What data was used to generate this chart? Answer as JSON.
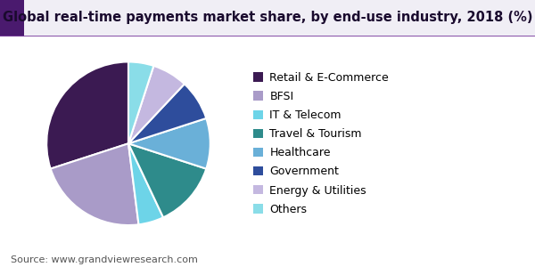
{
  "title": "Global real-time payments market share, by end-use industry, 2018 (%)",
  "source": "Source: www.grandviewresearch.com",
  "labels": [
    "Retail & E-Commerce",
    "BFSI",
    "IT & Telecom",
    "Travel & Tourism",
    "Healthcare",
    "Government",
    "Energy & Utilities",
    "Others"
  ],
  "values": [
    30,
    22,
    5,
    13,
    10,
    8,
    7,
    5
  ],
  "colors": [
    "#3b1a52",
    "#a99bc8",
    "#6dd4e8",
    "#2e8b8b",
    "#6ab0d8",
    "#2e4d9c",
    "#c4b8e0",
    "#8adde8"
  ],
  "title_fontsize": 10.5,
  "source_fontsize": 8,
  "legend_fontsize": 9,
  "background_color": "#ffffff",
  "title_color": "#1a0a2e",
  "header_bar_color": "#3b1a52",
  "header_line_color": "#6a3d7e",
  "startangle": 90
}
